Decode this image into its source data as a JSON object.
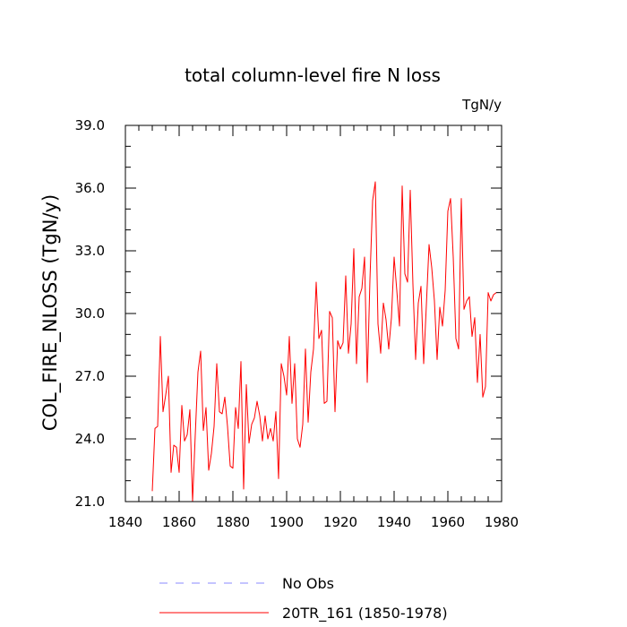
{
  "chart_data": {
    "type": "line",
    "title": "total column-level fire N loss",
    "units_label": "TgN/y",
    "xlabel": "",
    "ylabel": "COL_FIRE_NLOSS  (TgN/y)",
    "xlim": [
      1840,
      1980
    ],
    "ylim": [
      21.0,
      39.0
    ],
    "x_ticks": [
      1840,
      1860,
      1880,
      1900,
      1920,
      1940,
      1960,
      1980
    ],
    "x_tick_labels": [
      "1840",
      "1860",
      "1880",
      "1900",
      "1920",
      "1940",
      "1960",
      "1980"
    ],
    "y_ticks": [
      21,
      24,
      27,
      30,
      33,
      36,
      39
    ],
    "y_tick_labels": [
      "21.0",
      "24.0",
      "27.0",
      "30.0",
      "33.0",
      "36.0",
      "39.0"
    ],
    "x_minor_step": 5,
    "y_minor_step": 1,
    "grid": false,
    "legend_position": "bottom",
    "series": [
      {
        "name": "No Obs",
        "color": "#8a8aff",
        "style": "dashed",
        "x": [],
        "values": []
      },
      {
        "name": "20TR_161 (1850-1978)",
        "color": "#ff0000",
        "style": "solid",
        "x": [
          1850,
          1851,
          1852,
          1853,
          1854,
          1855,
          1856,
          1857,
          1858,
          1859,
          1860,
          1861,
          1862,
          1863,
          1864,
          1865,
          1866,
          1867,
          1868,
          1869,
          1870,
          1871,
          1872,
          1873,
          1874,
          1875,
          1876,
          1877,
          1878,
          1879,
          1880,
          1881,
          1882,
          1883,
          1884,
          1885,
          1886,
          1887,
          1888,
          1889,
          1890,
          1891,
          1892,
          1893,
          1894,
          1895,
          1896,
          1897,
          1898,
          1899,
          1900,
          1901,
          1902,
          1903,
          1904,
          1905,
          1906,
          1907,
          1908,
          1909,
          1910,
          1911,
          1912,
          1913,
          1914,
          1915,
          1916,
          1917,
          1918,
          1919,
          1920,
          1921,
          1922,
          1923,
          1924,
          1925,
          1926,
          1927,
          1928,
          1929,
          1930,
          1931,
          1932,
          1933,
          1934,
          1935,
          1936,
          1937,
          1938,
          1939,
          1940,
          1941,
          1942,
          1943,
          1944,
          1945,
          1946,
          1947,
          1948,
          1949,
          1950,
          1951,
          1952,
          1953,
          1954,
          1955,
          1956,
          1957,
          1958,
          1959,
          1960,
          1961,
          1962,
          1963,
          1964,
          1965,
          1966,
          1967,
          1968,
          1969,
          1970,
          1971,
          1972,
          1973,
          1974,
          1975,
          1976,
          1977,
          1978
        ],
        "values": [
          21.5,
          24.5,
          24.6,
          28.9,
          25.3,
          26.1,
          27.0,
          22.4,
          23.7,
          23.6,
          22.4,
          25.6,
          23.9,
          24.2,
          25.4,
          21.0,
          24.2,
          27.2,
          28.2,
          24.4,
          25.5,
          22.5,
          23.3,
          24.6,
          27.6,
          25.3,
          25.2,
          26.0,
          24.6,
          22.7,
          22.6,
          25.5,
          24.5,
          27.7,
          21.6,
          26.6,
          23.8,
          24.7,
          25.0,
          25.8,
          25.1,
          23.9,
          25.1,
          24.0,
          24.5,
          23.9,
          25.3,
          22.1,
          27.6,
          27.0,
          26.1,
          28.9,
          25.7,
          27.6,
          24.0,
          23.6,
          24.7,
          28.3,
          24.8,
          27.2,
          28.3,
          31.5,
          28.8,
          29.2,
          25.7,
          25.8,
          30.1,
          29.8,
          25.3,
          28.7,
          28.3,
          28.6,
          31.8,
          28.1,
          29.5,
          33.1,
          27.6,
          30.8,
          31.2,
          32.7,
          26.7,
          31.6,
          35.4,
          36.3,
          29.5,
          28.1,
          30.5,
          29.7,
          28.3,
          29.8,
          32.7,
          31.1,
          29.4,
          36.1,
          31.9,
          31.5,
          35.9,
          31.4,
          27.8,
          30.5,
          31.3,
          27.6,
          30.4,
          33.3,
          32.2,
          30.6,
          27.8,
          30.3,
          29.4,
          31.1,
          34.9,
          35.5,
          32.7,
          28.8,
          28.3,
          35.5,
          30.2,
          30.6,
          30.8,
          28.9,
          29.8,
          26.7,
          29.0,
          26.0,
          26.5,
          31.0,
          30.6,
          30.9,
          31.0
        ]
      }
    ]
  }
}
